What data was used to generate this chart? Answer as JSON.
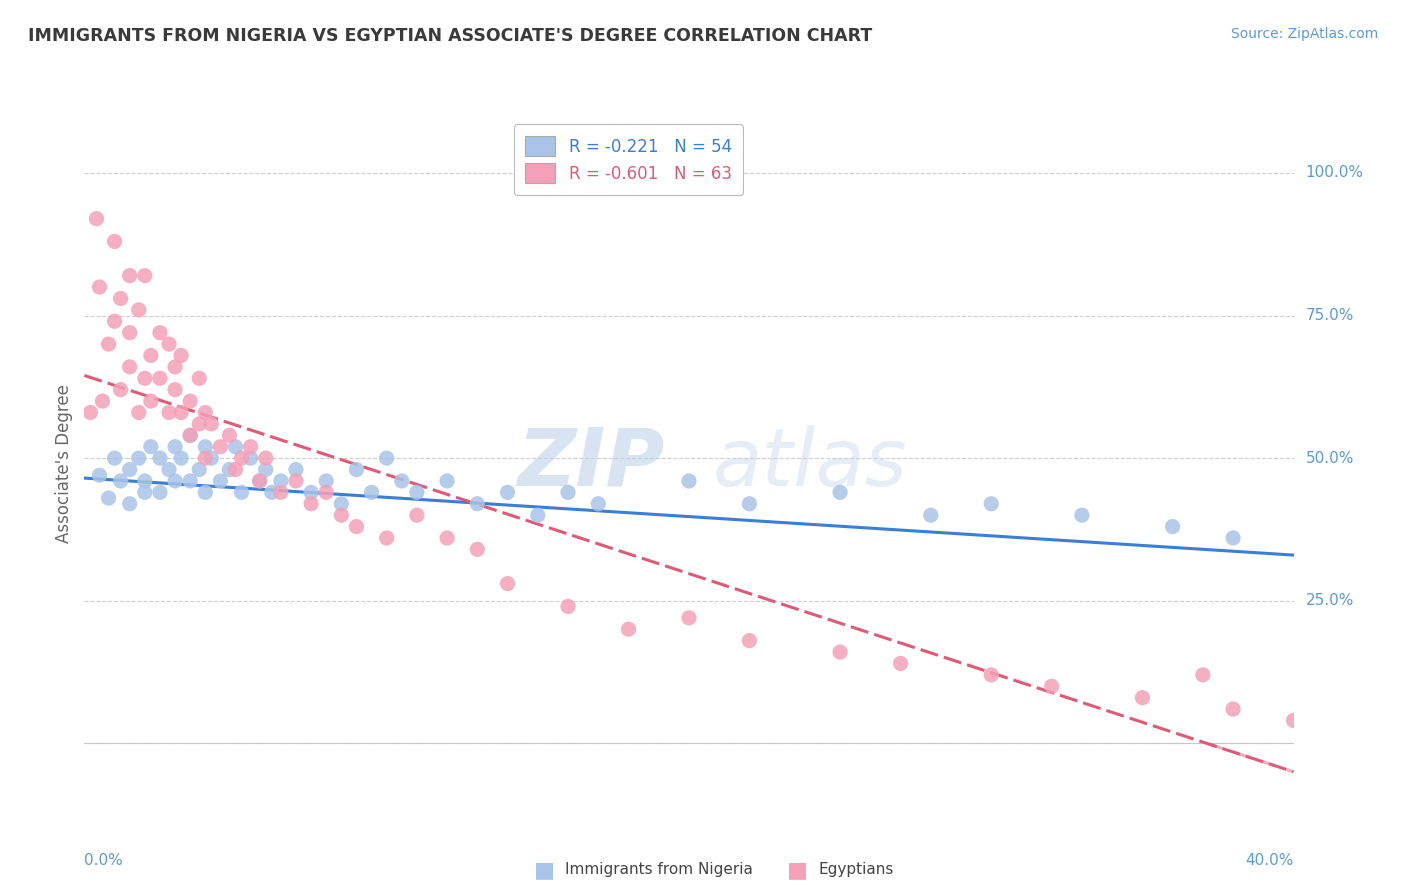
{
  "title": "IMMIGRANTS FROM NIGERIA VS EGYPTIAN ASSOCIATE'S DEGREE CORRELATION CHART",
  "source": "Source: ZipAtlas.com",
  "ylabel": "Associate's Degree",
  "y_ticks": [
    0.0,
    0.25,
    0.5,
    0.75,
    1.0
  ],
  "y_tick_labels": [
    "",
    "25.0%",
    "50.0%",
    "75.0%",
    "100.0%"
  ],
  "x_range": [
    0.0,
    0.4
  ],
  "y_range": [
    -0.12,
    1.1
  ],
  "series1_label": "Immigrants from Nigeria",
  "series1_R": -0.221,
  "series1_N": 54,
  "series1_color": "#a8c4e8",
  "series1_line_color": "#3a7fd5",
  "series2_label": "Egyptians",
  "series2_R": -0.601,
  "series2_N": 63,
  "series2_color": "#f4a0b8",
  "series2_line_color": "#e05a78",
  "watermark_zip": "ZIP",
  "watermark_atlas": "atlas",
  "background_color": "#ffffff",
  "grid_color": "#c8c8c8",
  "title_color": "#3a3a3a",
  "axis_label_color": "#5b9bd5",
  "nigeria_x": [
    0.005,
    0.008,
    0.01,
    0.012,
    0.015,
    0.015,
    0.018,
    0.02,
    0.02,
    0.022,
    0.025,
    0.025,
    0.028,
    0.03,
    0.03,
    0.032,
    0.035,
    0.035,
    0.038,
    0.04,
    0.04,
    0.042,
    0.045,
    0.048,
    0.05,
    0.052,
    0.055,
    0.058,
    0.06,
    0.062,
    0.065,
    0.07,
    0.075,
    0.08,
    0.085,
    0.09,
    0.095,
    0.1,
    0.105,
    0.11,
    0.12,
    0.13,
    0.14,
    0.15,
    0.16,
    0.17,
    0.2,
    0.22,
    0.25,
    0.28,
    0.3,
    0.33,
    0.36,
    0.38
  ],
  "nigeria_y": [
    0.47,
    0.43,
    0.5,
    0.46,
    0.48,
    0.42,
    0.5,
    0.46,
    0.44,
    0.52,
    0.5,
    0.44,
    0.48,
    0.52,
    0.46,
    0.5,
    0.54,
    0.46,
    0.48,
    0.52,
    0.44,
    0.5,
    0.46,
    0.48,
    0.52,
    0.44,
    0.5,
    0.46,
    0.48,
    0.44,
    0.46,
    0.48,
    0.44,
    0.46,
    0.42,
    0.48,
    0.44,
    0.5,
    0.46,
    0.44,
    0.46,
    0.42,
    0.44,
    0.4,
    0.44,
    0.42,
    0.46,
    0.42,
    0.44,
    0.4,
    0.42,
    0.4,
    0.38,
    0.36
  ],
  "egypt_x": [
    0.002,
    0.004,
    0.005,
    0.006,
    0.008,
    0.01,
    0.01,
    0.012,
    0.012,
    0.015,
    0.015,
    0.015,
    0.018,
    0.018,
    0.02,
    0.02,
    0.022,
    0.022,
    0.025,
    0.025,
    0.028,
    0.028,
    0.03,
    0.03,
    0.032,
    0.032,
    0.035,
    0.035,
    0.038,
    0.038,
    0.04,
    0.04,
    0.042,
    0.045,
    0.048,
    0.05,
    0.052,
    0.055,
    0.058,
    0.06,
    0.065,
    0.07,
    0.075,
    0.08,
    0.085,
    0.09,
    0.1,
    0.11,
    0.12,
    0.13,
    0.14,
    0.16,
    0.18,
    0.2,
    0.22,
    0.25,
    0.27,
    0.3,
    0.32,
    0.35,
    0.37,
    0.38,
    0.4
  ],
  "egypt_y": [
    0.58,
    0.92,
    0.8,
    0.6,
    0.7,
    0.74,
    0.88,
    0.62,
    0.78,
    0.82,
    0.66,
    0.72,
    0.58,
    0.76,
    0.64,
    0.82,
    0.68,
    0.6,
    0.72,
    0.64,
    0.58,
    0.7,
    0.62,
    0.66,
    0.58,
    0.68,
    0.6,
    0.54,
    0.64,
    0.56,
    0.58,
    0.5,
    0.56,
    0.52,
    0.54,
    0.48,
    0.5,
    0.52,
    0.46,
    0.5,
    0.44,
    0.46,
    0.42,
    0.44,
    0.4,
    0.38,
    0.36,
    0.4,
    0.36,
    0.34,
    0.28,
    0.24,
    0.2,
    0.22,
    0.18,
    0.16,
    0.14,
    0.12,
    0.1,
    0.08,
    0.12,
    0.06,
    0.04
  ]
}
